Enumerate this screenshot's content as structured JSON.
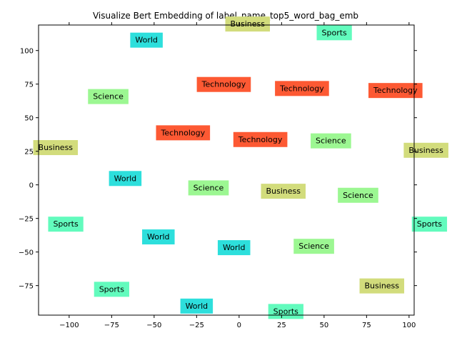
{
  "chart_data": {
    "type": "scatter",
    "title": "Visualize Bert Embedding of label_name_top5_word_bag_emb",
    "xlabel": "",
    "ylabel": "",
    "xlim": [
      -118,
      103
    ],
    "ylim": [
      -97,
      119
    ],
    "xticks": [
      -100,
      -75,
      -50,
      -25,
      0,
      25,
      50,
      75,
      100
    ],
    "yticks": [
      -75,
      -50,
      -25,
      0,
      25,
      50,
      75,
      100
    ],
    "xtick_labels": [
      "−100",
      "−75",
      "−50",
      "−25",
      "0",
      "25",
      "50",
      "75",
      "100"
    ],
    "ytick_labels": [
      "−75",
      "−50",
      "−25",
      "0",
      "25",
      "50",
      "75",
      "100"
    ],
    "grid": false,
    "legend": "none",
    "colors": {
      "World": "#2ddfdc",
      "Sports": "#62fbbd",
      "Business": "#d2dc7c",
      "Science": "#9cf792",
      "Technology": "#fd5933"
    },
    "points": [
      {
        "label": "World",
        "x": -54.5,
        "y": 108
      },
      {
        "label": "World",
        "x": -67,
        "y": 5
      },
      {
        "label": "World",
        "x": -47.5,
        "y": -38.5
      },
      {
        "label": "World",
        "x": -3,
        "y": -46.5
      },
      {
        "label": "World",
        "x": -25,
        "y": -90
      },
      {
        "label": "Sports",
        "x": 56,
        "y": 113.5
      },
      {
        "label": "Sports",
        "x": -102,
        "y": -29
      },
      {
        "label": "Sports",
        "x": -75,
        "y": -77.5
      },
      {
        "label": "Sports",
        "x": 112,
        "y": -29
      },
      {
        "label": "Sports",
        "x": 27.5,
        "y": -94
      },
      {
        "label": "Business",
        "x": 5,
        "y": 120
      },
      {
        "label": "Business",
        "x": -108,
        "y": 28
      },
      {
        "label": "Business",
        "x": 110,
        "y": 26
      },
      {
        "label": "Business",
        "x": 26,
        "y": -4.5
      },
      {
        "label": "Business",
        "x": 84,
        "y": -75
      },
      {
        "label": "Science",
        "x": -77,
        "y": 66
      },
      {
        "label": "Science",
        "x": 54,
        "y": 33
      },
      {
        "label": "Science",
        "x": -18,
        "y": -2
      },
      {
        "label": "Science",
        "x": 70,
        "y": -7.5
      },
      {
        "label": "Science",
        "x": 44,
        "y": -45.5
      },
      {
        "label": "Technology",
        "x": -9,
        "y": 75
      },
      {
        "label": "Technology",
        "x": 37,
        "y": 72
      },
      {
        "label": "Technology",
        "x": -33,
        "y": 39
      },
      {
        "label": "Technology",
        "x": 12.5,
        "y": 34
      },
      {
        "label": "Technology",
        "x": 92,
        "y": 70.5
      }
    ]
  }
}
